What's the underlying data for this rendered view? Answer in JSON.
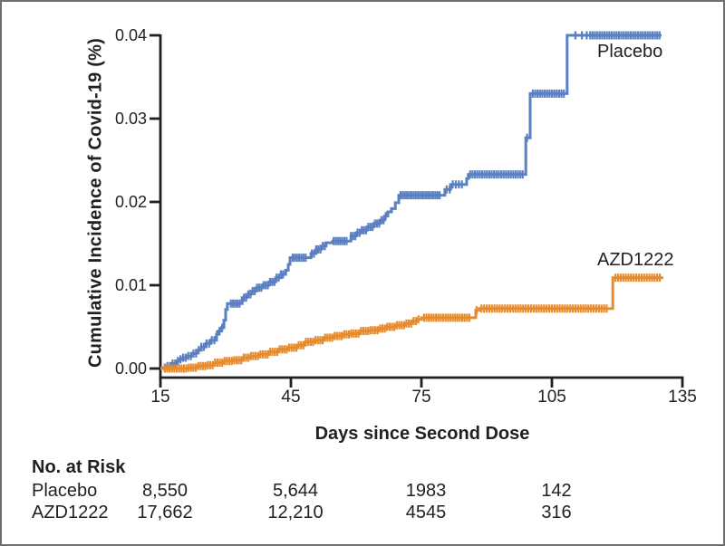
{
  "chart_data": {
    "type": "line",
    "subtype": "kaplan-meier-step",
    "title": "",
    "xlabel": "Days since Second Dose",
    "ylabel": "Cumulative Incidence of Covid-19 (%)",
    "xlim": [
      15,
      135
    ],
    "ylim": [
      0,
      0.04
    ],
    "grid": false,
    "axis_color": "#231f20",
    "x_ticks": [
      {
        "label": "15",
        "value": 15
      },
      {
        "label": "45",
        "value": 45
      },
      {
        "label": "75",
        "value": 75
      },
      {
        "label": "105",
        "value": 105
      },
      {
        "label": "135",
        "value": 135
      }
    ],
    "y_ticks": [
      {
        "label": "0.00",
        "value": 0.0
      },
      {
        "label": "0.01",
        "value": 0.01
      },
      {
        "label": "0.02",
        "value": 0.02
      },
      {
        "label": "0.03",
        "value": 0.03
      },
      {
        "label": "0.04",
        "value": 0.04
      }
    ],
    "legend_position": "labels-at-line-end",
    "series": [
      {
        "name": "Placebo",
        "color": "#5a80c2",
        "end_day": 130.2,
        "steps": [
          [
            15,
            0.0001
          ],
          [
            16.2,
            0.0003
          ],
          [
            17.5,
            0.0006
          ],
          [
            18.6,
            0.0009
          ],
          [
            19.4,
            0.0011
          ],
          [
            20.2,
            0.0013
          ],
          [
            21.2,
            0.0015
          ],
          [
            22.3,
            0.0018
          ],
          [
            23.3,
            0.0022
          ],
          [
            24.4,
            0.0026
          ],
          [
            25.5,
            0.003
          ],
          [
            26.5,
            0.0034
          ],
          [
            27.9,
            0.0041
          ],
          [
            28.4,
            0.0045
          ],
          [
            29,
            0.0049
          ],
          [
            29.6,
            0.0058
          ],
          [
            30,
            0.0071
          ],
          [
            30.4,
            0.0078
          ],
          [
            33.8,
            0.0085
          ],
          [
            34.8,
            0.0089
          ],
          [
            35.8,
            0.0093
          ],
          [
            37.1,
            0.0097
          ],
          [
            38.5,
            0.01
          ],
          [
            40,
            0.0104
          ],
          [
            41.5,
            0.0109
          ],
          [
            42.7,
            0.0113
          ],
          [
            43.8,
            0.0118
          ],
          [
            44.4,
            0.0125
          ],
          [
            44.8,
            0.0133
          ],
          [
            49.6,
            0.0138
          ],
          [
            50.8,
            0.0143
          ],
          [
            51.9,
            0.0147
          ],
          [
            53.1,
            0.0151
          ],
          [
            54.6,
            0.0153
          ],
          [
            58.8,
            0.0159
          ],
          [
            60,
            0.0163
          ],
          [
            61.3,
            0.0166
          ],
          [
            62.5,
            0.017
          ],
          [
            64,
            0.0174
          ],
          [
            65.4,
            0.0178
          ],
          [
            66.5,
            0.0183
          ],
          [
            67.3,
            0.0188
          ],
          [
            68.1,
            0.0192
          ],
          [
            69,
            0.0199
          ],
          [
            69.8,
            0.0208
          ],
          [
            80.4,
            0.0215
          ],
          [
            81.7,
            0.0221
          ],
          [
            85.4,
            0.0228
          ],
          [
            85.8,
            0.0233
          ],
          [
            99,
            0.0277
          ],
          [
            100,
            0.033
          ],
          [
            108.5,
            0.04
          ]
        ],
        "censor_runs": [
          [
            16,
            29.4,
            0.6
          ],
          [
            31.2,
            33.2,
            0.5
          ],
          [
            34.2,
            43.6,
            0.5
          ],
          [
            45.4,
            48.6,
            0.5
          ],
          [
            49.8,
            53.2,
            0.5
          ],
          [
            54.8,
            58,
            0.5
          ],
          [
            58.8,
            67,
            0.5
          ],
          [
            70.2,
            79.6,
            0.5
          ],
          [
            80.8,
            84.4,
            0.7
          ],
          [
            86.2,
            98.4,
            0.55
          ],
          [
            100.6,
            107.9,
            0.55
          ],
          [
            113.8,
            129.9,
            0.55
          ]
        ],
        "censor_singles": [
          99.3,
          110.4,
          111.9,
          113
        ]
      },
      {
        "name": "AZD1222",
        "color": "#e78b2d",
        "end_day": 130.6,
        "steps": [
          [
            15,
            0.0
          ],
          [
            21.3,
            0.0001
          ],
          [
            23.3,
            0.0003
          ],
          [
            25.4,
            0.0004
          ],
          [
            27.5,
            0.0007
          ],
          [
            29.6,
            0.0009
          ],
          [
            31.7,
            0.001
          ],
          [
            33.8,
            0.0013
          ],
          [
            35.8,
            0.0015
          ],
          [
            37.9,
            0.0017
          ],
          [
            40,
            0.002
          ],
          [
            42.1,
            0.0023
          ],
          [
            44.2,
            0.0025
          ],
          [
            46.3,
            0.0028
          ],
          [
            48.3,
            0.0032
          ],
          [
            50.4,
            0.0034
          ],
          [
            52.5,
            0.0037
          ],
          [
            54.6,
            0.0039
          ],
          [
            56.7,
            0.0041
          ],
          [
            58.8,
            0.0042
          ],
          [
            60.8,
            0.0045
          ],
          [
            62.9,
            0.0046
          ],
          [
            65,
            0.0048
          ],
          [
            67.1,
            0.005
          ],
          [
            69.2,
            0.0052
          ],
          [
            71.3,
            0.0054
          ],
          [
            72.7,
            0.0057
          ],
          [
            74,
            0.0059
          ],
          [
            75,
            0.0061
          ],
          [
            87.5,
            0.007
          ],
          [
            88.3,
            0.0072
          ],
          [
            119,
            0.0109
          ]
        ],
        "censor_runs": [
          [
            16,
            74.6,
            0.55
          ],
          [
            75.6,
            86.2,
            0.55
          ],
          [
            88.8,
            117.6,
            0.6
          ],
          [
            119.6,
            130,
            0.6
          ]
        ],
        "censor_singles": [
          87.7
        ]
      }
    ]
  },
  "risk_table": {
    "title": "No. at Risk",
    "column_days": [
      15,
      45,
      75,
      105
    ],
    "rows": [
      {
        "label": "Placebo",
        "values": [
          "8,550",
          "5,644",
          "1983",
          "142"
        ]
      },
      {
        "label": "AZD1222",
        "values": [
          "17,662",
          "12,210",
          "4545",
          "316"
        ]
      }
    ]
  }
}
